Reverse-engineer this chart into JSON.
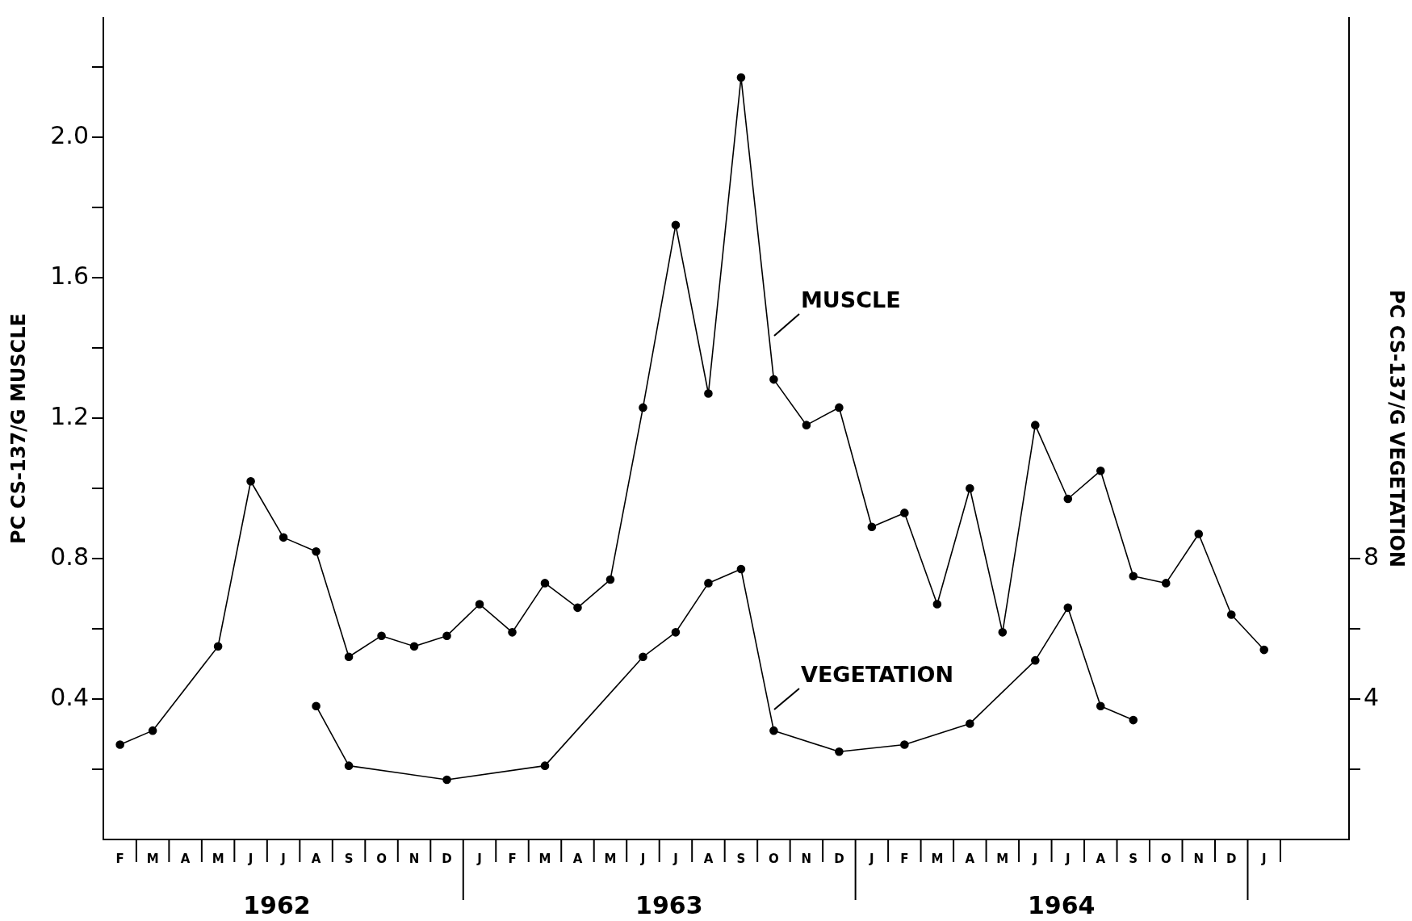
{
  "chart_data": {
    "type": "line",
    "ylabel": "PC CS-137/G MUSCLE",
    "y2label": "PC CS-137/G VEGETATION",
    "categories": [
      "F",
      "M",
      "A",
      "M",
      "J",
      "J",
      "A",
      "S",
      "O",
      "N",
      "D",
      "J",
      "F",
      "M",
      "A",
      "M",
      "J",
      "J",
      "A",
      "S",
      "O",
      "N",
      "D",
      "J",
      "F",
      "M",
      "A",
      "M",
      "J",
      "J",
      "A",
      "S",
      "O",
      "N",
      "D",
      "J"
    ],
    "series": [
      {
        "name": "MUSCLE",
        "color": "#000000",
        "values": [
          0.27,
          0.31,
          null,
          0.55,
          1.02,
          0.86,
          0.82,
          0.52,
          0.58,
          0.55,
          0.58,
          0.67,
          0.59,
          0.73,
          0.66,
          0.74,
          1.23,
          1.75,
          1.27,
          2.17,
          1.31,
          1.18,
          1.23,
          0.89,
          0.93,
          0.67,
          1.0,
          0.59,
          1.18,
          0.97,
          1.05,
          0.75,
          0.73,
          0.87,
          0.64,
          0.54
        ]
      },
      {
        "name": "VEGETATION",
        "color": "#000000",
        "axis": "y2",
        "values": [
          null,
          null,
          null,
          null,
          null,
          null,
          3.8,
          2.1,
          null,
          null,
          1.7,
          null,
          null,
          2.1,
          null,
          null,
          5.2,
          5.9,
          7.3,
          7.7,
          3.1,
          null,
          2.5,
          null,
          2.7,
          null,
          3.3,
          null,
          5.1,
          6.6,
          3.8,
          3.4,
          null,
          null,
          null,
          null
        ]
      }
    ],
    "ylim": [
      0,
      2.34
    ],
    "yticks": [
      {
        "value": 0.2,
        "label": null
      },
      0.4,
      {
        "value": 0.6,
        "label": null
      },
      0.8,
      {
        "value": 1.0,
        "label": null
      },
      1.2,
      {
        "value": 1.4,
        "label": null
      },
      1.6,
      {
        "value": 1.8,
        "label": null
      },
      {
        "value": 2.0,
        "label": "2.0"
      },
      {
        "value": 2.2,
        "label": null
      }
    ],
    "y2lim": [
      0,
      23.4
    ],
    "y2ticks": [
      {
        "value": 2,
        "label": null
      },
      4,
      {
        "value": 6,
        "label": null
      },
      8
    ],
    "annotations": [
      "1962",
      "1963",
      "1964"
    ],
    "grid": false,
    "legend": false,
    "marker": "circle",
    "line_style": "solid"
  }
}
